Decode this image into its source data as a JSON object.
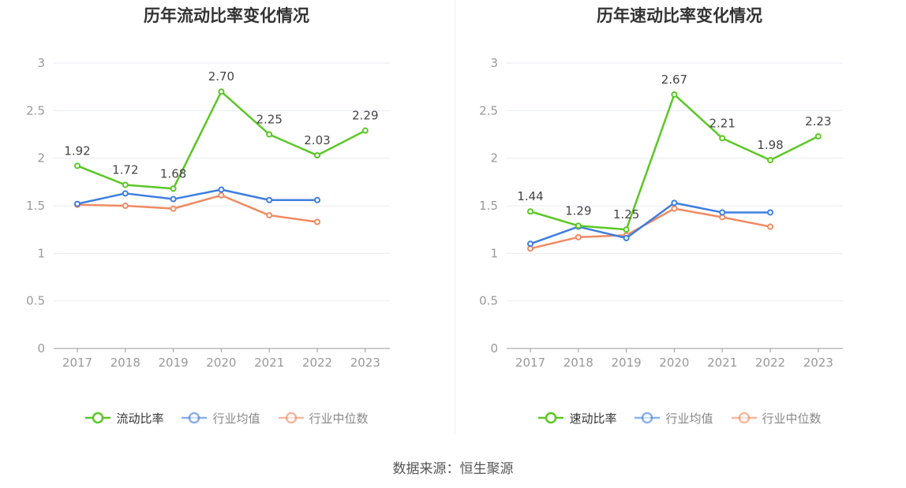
{
  "chart_data": [
    {
      "type": "line",
      "title": "历年流动比率变化情况",
      "categories": [
        "2017",
        "2018",
        "2019",
        "2020",
        "2021",
        "2022",
        "2023"
      ],
      "ylim": [
        0,
        3
      ],
      "yticks": [
        "0",
        "0.5",
        "1",
        "1.5",
        "2",
        "2.5",
        "3"
      ],
      "ytick_values": [
        0,
        0.5,
        1,
        1.5,
        2,
        2.5,
        3
      ],
      "series": [
        {
          "name": "流动比率",
          "color": "#5ac725",
          "values": [
            1.92,
            1.72,
            1.68,
            2.7,
            2.25,
            2.03,
            2.29
          ],
          "labels": [
            "1.92",
            "1.72",
            "1.68",
            "2.70",
            "2.25",
            "2.03",
            "2.29"
          ]
        },
        {
          "name": "行业均值",
          "color": "#3d7ee0",
          "values": [
            1.52,
            1.63,
            1.57,
            1.67,
            1.56,
            1.56,
            null
          ]
        },
        {
          "name": "行业中位数",
          "color": "#f08a62",
          "values": [
            1.51,
            1.5,
            1.47,
            1.61,
            1.4,
            1.33,
            null
          ]
        }
      ]
    },
    {
      "type": "line",
      "title": "历年速动比率变化情况",
      "categories": [
        "2017",
        "2018",
        "2019",
        "2020",
        "2021",
        "2022",
        "2023"
      ],
      "ylim": [
        0,
        3
      ],
      "yticks": [
        "0",
        "0.5",
        "1",
        "1.5",
        "2",
        "2.5",
        "3"
      ],
      "ytick_values": [
        0,
        0.5,
        1,
        1.5,
        2,
        2.5,
        3
      ],
      "series": [
        {
          "name": "速动比率",
          "color": "#5ac725",
          "values": [
            1.44,
            1.29,
            1.25,
            2.67,
            2.21,
            1.98,
            2.23
          ],
          "labels": [
            "1.44",
            "1.29",
            "1.25",
            "2.67",
            "2.21",
            "1.98",
            "2.23"
          ]
        },
        {
          "name": "行业均值",
          "color": "#3d7ee0",
          "values": [
            1.1,
            1.28,
            1.16,
            1.53,
            1.43,
            1.43,
            null
          ]
        },
        {
          "name": "行业中位数",
          "color": "#f08a62",
          "values": [
            1.05,
            1.17,
            1.19,
            1.47,
            1.38,
            1.28,
            null
          ]
        }
      ]
    }
  ],
  "footer": {
    "source": "数据来源：恒生聚源"
  },
  "styles": {
    "axis_text_color": "#999999",
    "label_text_color": "#444444",
    "grid_color": "#e8ebf3",
    "axis_line_color": "#999999",
    "legend_primary_text_color": "#333333",
    "legend_secondary_text_color": "#888888"
  }
}
